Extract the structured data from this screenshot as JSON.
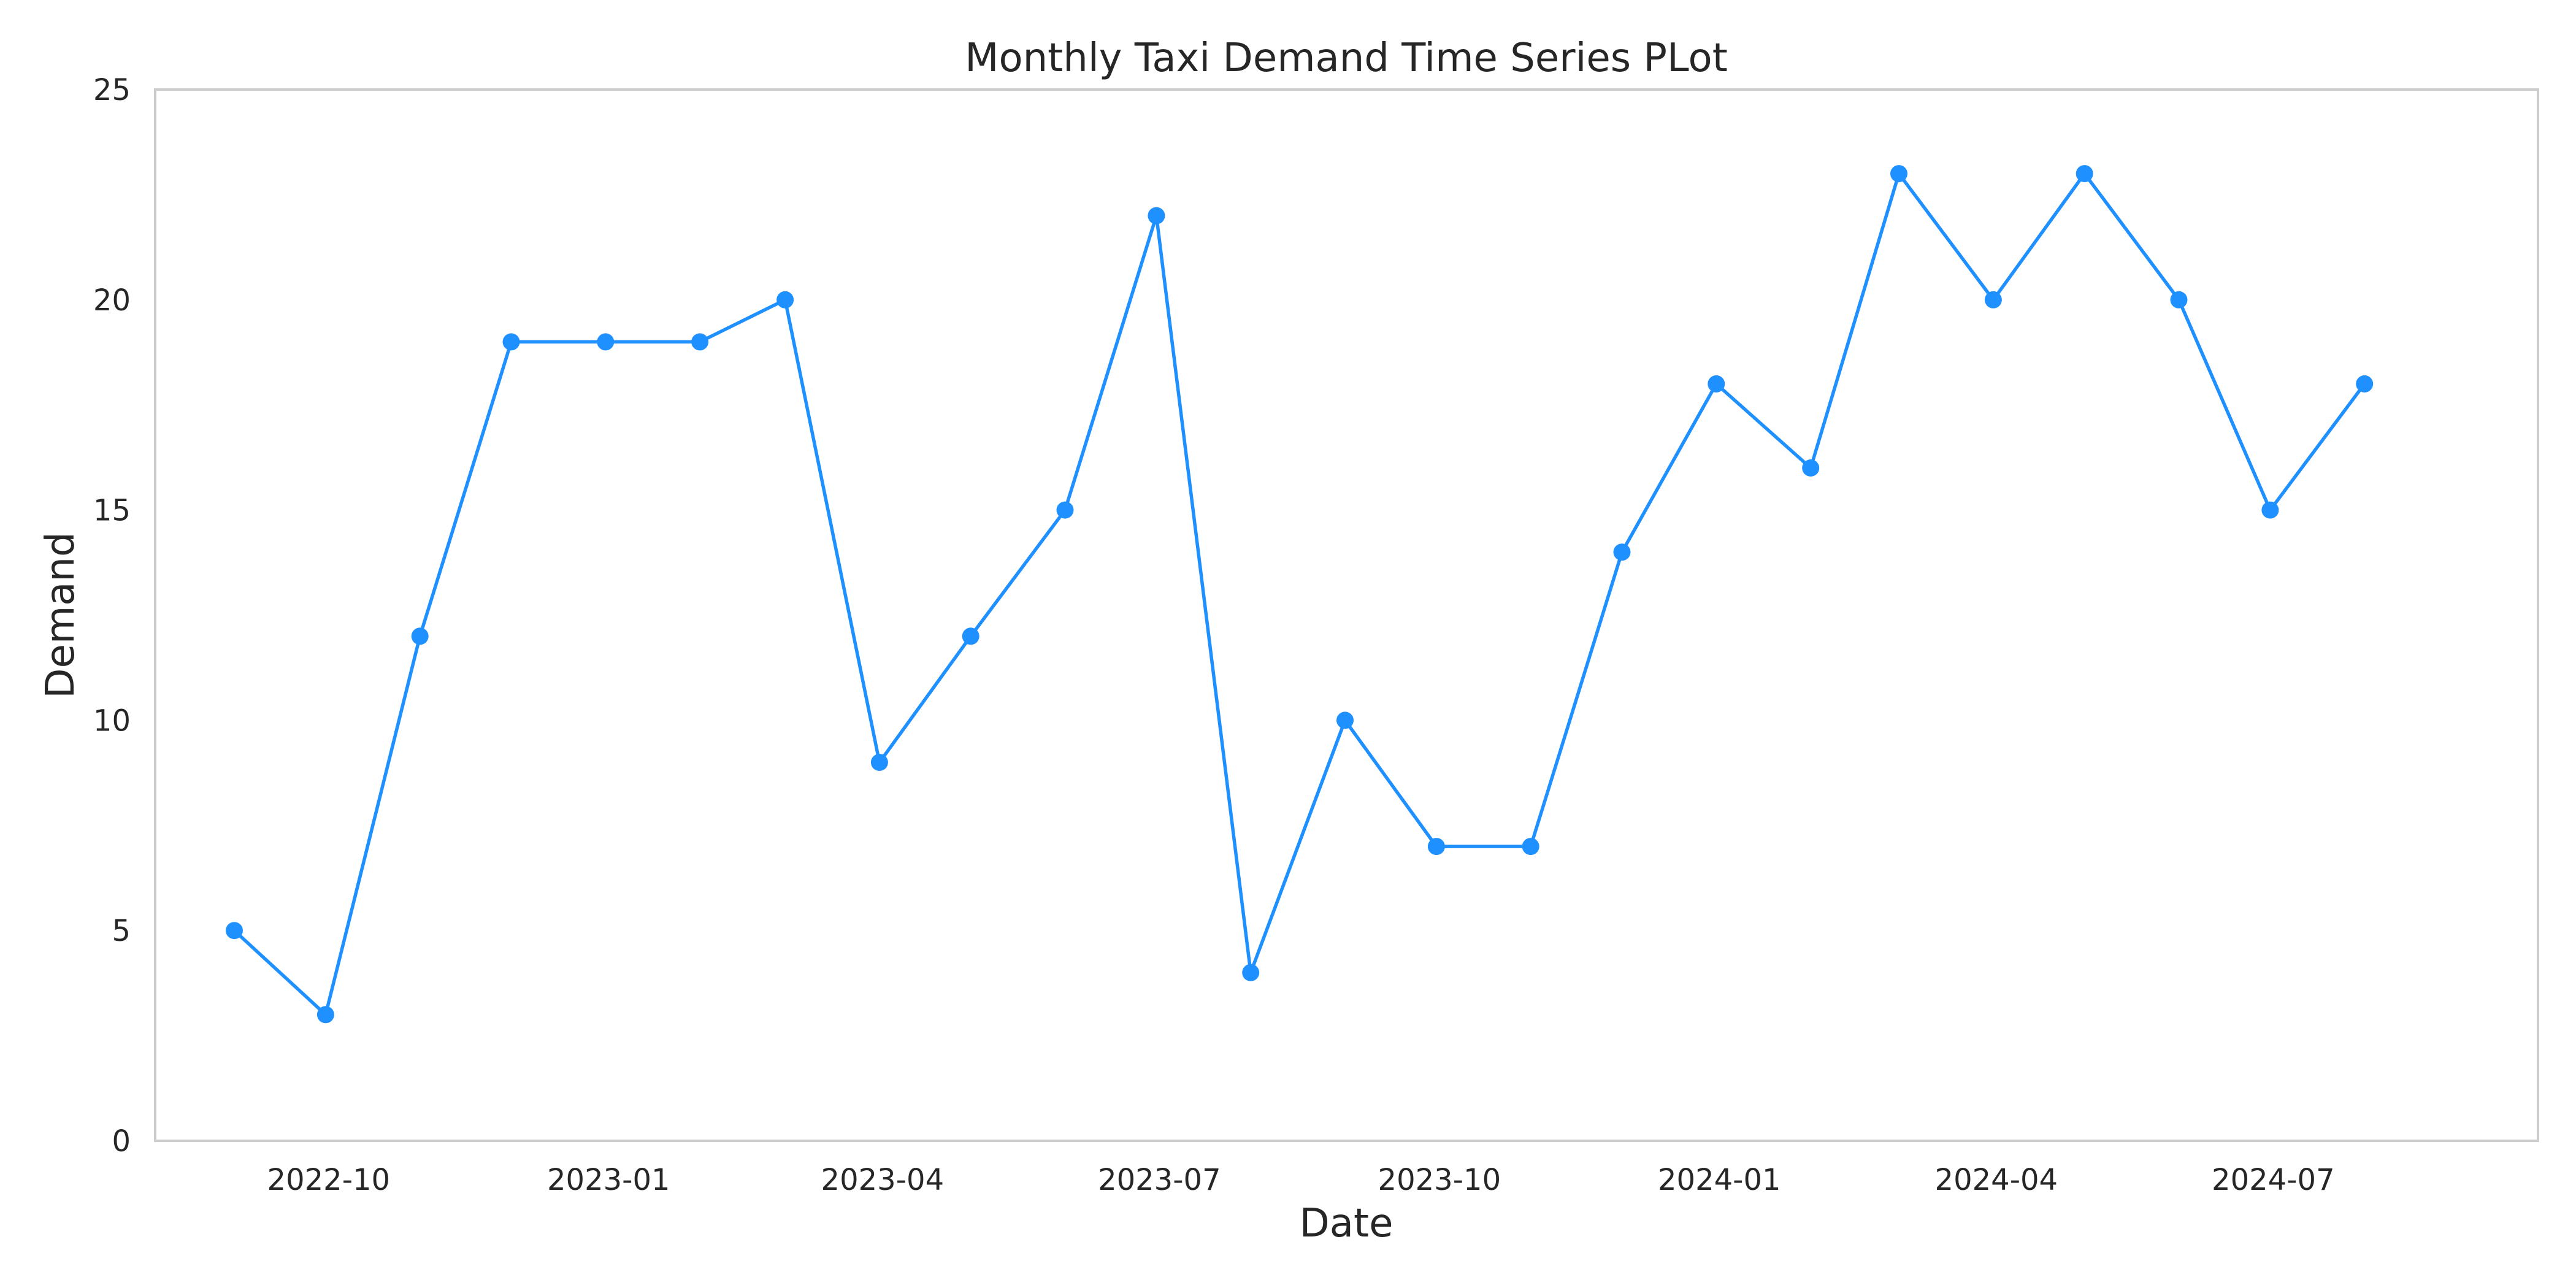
{
  "chart_data": {
    "type": "line",
    "title": "Monthly Taxi Demand Time Series PLot",
    "xlabel": "Date",
    "ylabel": "Demand",
    "ylim": [
      0,
      25
    ],
    "yticks": [
      0,
      5,
      10,
      15,
      20,
      25
    ],
    "xlim": [
      "2022-08-05",
      "2024-09-26"
    ],
    "xticks": [
      "2022-10",
      "2023-01",
      "2023-04",
      "2023-07",
      "2023-10",
      "2024-01",
      "2024-04",
      "2024-07"
    ],
    "grid": false,
    "series": [
      {
        "color": "#1e90ff",
        "x": [
          "2022-08-31",
          "2022-09-30",
          "2022-10-31",
          "2022-11-30",
          "2022-12-31",
          "2023-01-31",
          "2023-02-28",
          "2023-03-31",
          "2023-04-30",
          "2023-05-31",
          "2023-06-30",
          "2023-07-31",
          "2023-08-31",
          "2023-09-30",
          "2023-10-31",
          "2023-11-30",
          "2023-12-31",
          "2024-01-31",
          "2024-02-29",
          "2024-03-31",
          "2024-04-30",
          "2024-05-31",
          "2024-06-30",
          "2024-07-31"
        ],
        "values": [
          5,
          3,
          12,
          19,
          19,
          19,
          20,
          9,
          12,
          15,
          22,
          4,
          10,
          7,
          7,
          14,
          18,
          16,
          23,
          20,
          23,
          20,
          15,
          18
        ]
      }
    ]
  }
}
